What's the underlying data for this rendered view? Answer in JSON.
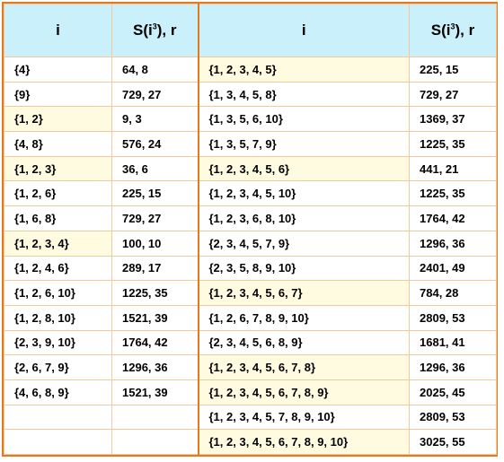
{
  "header": {
    "col_i": "i",
    "col_s_prefix": "S(i",
    "col_s_sup": "3",
    "col_s_suffix": "), r"
  },
  "rows": [
    {
      "left_set": "{4}",
      "left_val": "64, 8",
      "left_hl": false,
      "right_set": "{1, 2, 3, 4, 5}",
      "right_val": "225, 15",
      "right_hl": true
    },
    {
      "left_set": "{9}",
      "left_val": "729, 27",
      "left_hl": false,
      "right_set": "{1, 3, 4, 5, 8}",
      "right_val": "729, 27",
      "right_hl": false
    },
    {
      "left_set": "{1, 2}",
      "left_val": "9, 3",
      "left_hl": true,
      "right_set": "{1, 3, 5, 6, 10}",
      "right_val": "1369, 37",
      "right_hl": false
    },
    {
      "left_set": "{4, 8}",
      "left_val": "576, 24",
      "left_hl": false,
      "right_set": "{1, 3, 5, 7, 9}",
      "right_val": "1225, 35",
      "right_hl": false
    },
    {
      "left_set": "{1, 2, 3}",
      "left_val": "36, 6",
      "left_hl": true,
      "right_set": "{1, 2, 3, 4, 5, 6}",
      "right_val": "441, 21",
      "right_hl": true
    },
    {
      "left_set": "{1, 2, 6}",
      "left_val": "225, 15",
      "left_hl": false,
      "right_set": "{1, 2, 3, 4, 5, 10}",
      "right_val": "1225, 35",
      "right_hl": false
    },
    {
      "left_set": "{1, 6, 8}",
      "left_val": "729, 27",
      "left_hl": false,
      "right_set": "{1, 2, 3, 6, 8, 10}",
      "right_val": "1764, 42",
      "right_hl": false
    },
    {
      "left_set": "{1, 2, 3, 4}",
      "left_val": "100, 10",
      "left_hl": true,
      "right_set": "{2, 3, 4, 5, 7, 9}",
      "right_val": "1296, 36",
      "right_hl": false
    },
    {
      "left_set": "{1, 2, 4, 6}",
      "left_val": "289, 17",
      "left_hl": false,
      "right_set": "{2, 3, 5, 8, 9, 10}",
      "right_val": "2401, 49",
      "right_hl": false
    },
    {
      "left_set": "{1, 2, 6, 10}",
      "left_val": "1225, 35",
      "left_hl": false,
      "right_set": "{1, 2, 3, 4, 5, 6, 7}",
      "right_val": "784, 28",
      "right_hl": true
    },
    {
      "left_set": "{1, 2, 8, 10}",
      "left_val": "1521, 39",
      "left_hl": false,
      "right_set": "{1, 2, 6, 7, 8, 9, 10}",
      "right_val": "2809, 53",
      "right_hl": false
    },
    {
      "left_set": "{2, 3, 9, 10}",
      "left_val": "1764, 42",
      "left_hl": false,
      "right_set": "{2, 3, 4, 5, 6, 8, 9}",
      "right_val": "1681, 41",
      "right_hl": false
    },
    {
      "left_set": "{2, 6, 7, 9}",
      "left_val": "1296, 36",
      "left_hl": false,
      "right_set": "{1, 2, 3, 4, 5, 6, 7, 8}",
      "right_val": "1296, 36",
      "right_hl": true
    },
    {
      "left_set": "{4, 6, 8, 9}",
      "left_val": "1521, 39",
      "left_hl": false,
      "right_set": "{1, 2, 3, 4, 5, 6, 7, 8, 9}",
      "right_val": "2025, 45",
      "right_hl": true
    },
    {
      "left_set": "",
      "left_val": "",
      "left_hl": false,
      "right_set": "{1, 2, 3, 4, 5, 7, 8, 9, 10}",
      "right_val": "2809, 53",
      "right_hl": false
    },
    {
      "left_set": "",
      "left_val": "",
      "left_hl": false,
      "right_set": "{1, 2, 3, 4, 5, 6, 7, 8, 9, 10}",
      "right_val": "3025, 55",
      "right_hl": true
    }
  ],
  "colors": {
    "border": "#e07b1f",
    "header_bg": "#c9f0fb",
    "highlight_bg": "#fffbe0",
    "grid": "#f2c89c"
  }
}
